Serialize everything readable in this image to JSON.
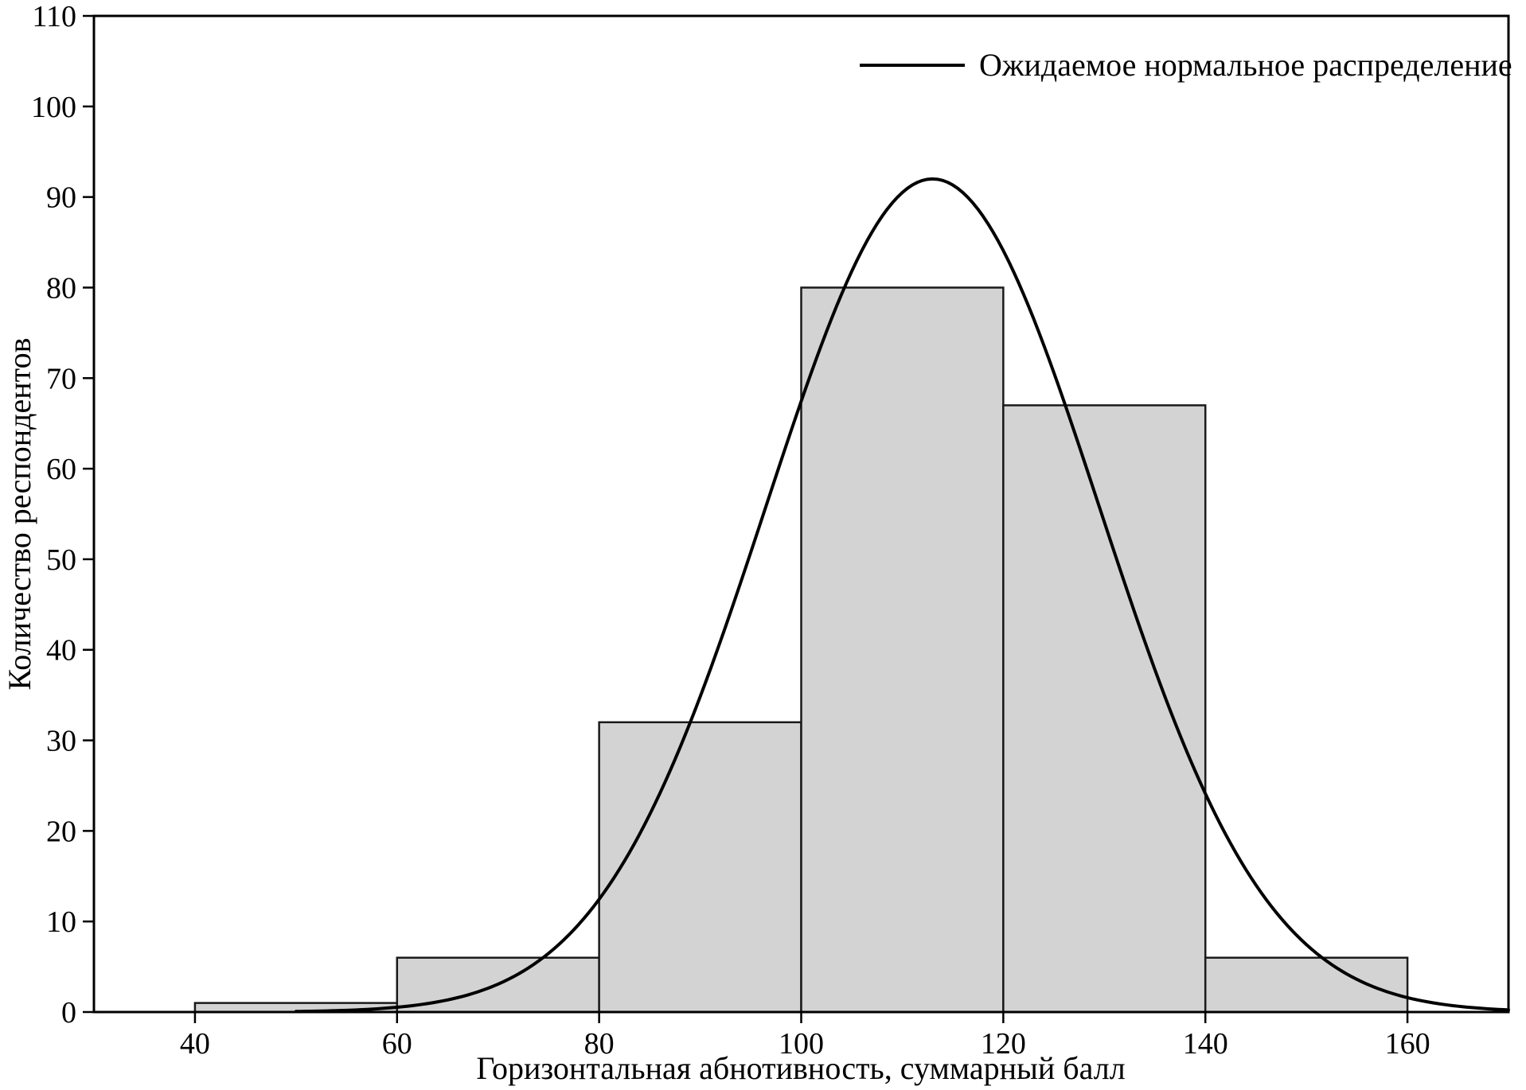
{
  "chart_data": {
    "type": "bar",
    "subtype": "histogram-with-normal-curve",
    "bin_edges": [
      40,
      60,
      80,
      100,
      120,
      140,
      160
    ],
    "categories": [
      "40-60",
      "60-80",
      "80-100",
      "100-120",
      "120-140",
      "140-160"
    ],
    "values": [
      1,
      6,
      32,
      80,
      67,
      6
    ],
    "title": "",
    "xlabel": "Горизонтальная абнотивность, суммарный балл",
    "ylabel": "Количество респондентов",
    "xlim": [
      30,
      170
    ],
    "ylim": [
      0,
      110
    ],
    "x_ticks": [
      40,
      60,
      80,
      100,
      120,
      140,
      160
    ],
    "y_ticks": [
      0,
      10,
      20,
      30,
      40,
      50,
      60,
      70,
      80,
      90,
      100,
      110
    ],
    "grid": false,
    "legend_position": "top-right",
    "legend": [
      {
        "label": "Ожидаемое нормальное распределение",
        "type": "line",
        "color": "#000000"
      }
    ],
    "normal_curve": {
      "mean": 113,
      "sd": 16.5,
      "peak": 92,
      "x_start": 50,
      "x_end": 170
    },
    "colors": {
      "bar_fill": "#d3d3d3",
      "bar_stroke": "#1a1a1a",
      "curve": "#000000",
      "axis": "#000000",
      "background": "#ffffff"
    }
  }
}
